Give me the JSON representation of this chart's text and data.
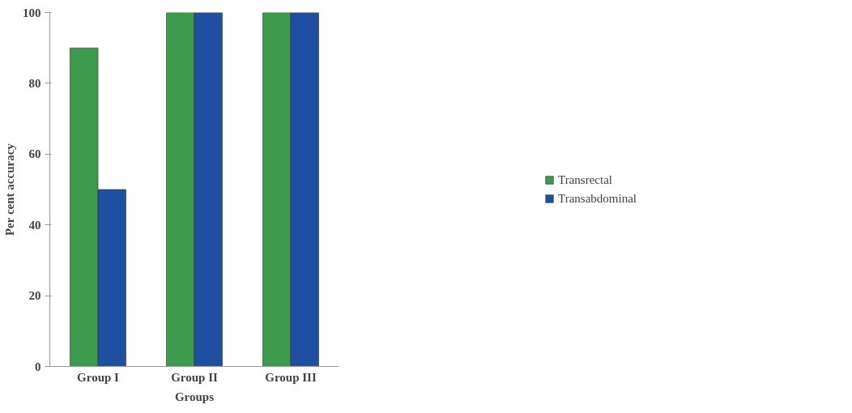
{
  "chart_data": {
    "type": "bar",
    "xlabel": "Groups",
    "ylabel": "Per cent accuracy",
    "categories": [
      "Group I",
      "Group II",
      "Group III"
    ],
    "series": [
      {
        "name": "Transrectal",
        "color": "#3c9a4c",
        "values": [
          90,
          100,
          100
        ]
      },
      {
        "name": "Transabdominal",
        "color": "#1f4fa3",
        "values": [
          50,
          100,
          100
        ]
      }
    ],
    "ylim": [
      0,
      100
    ],
    "yticks": [
      0,
      20,
      40,
      60,
      80,
      100
    ],
    "grid": false,
    "legend": "right"
  }
}
